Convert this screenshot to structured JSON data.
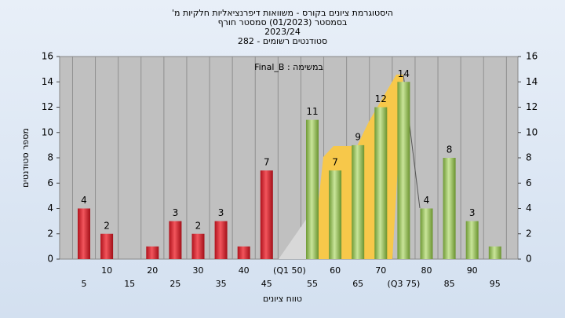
{
  "chart_data": {
    "type": "bar",
    "title": "היסטוגרמת ציונים בקורס - משוואות דיפרנציאליות חלקיות מ'",
    "subtitle": [
      "בסמסטר  (01/2023)  סמסטר חורף",
      "2023/24",
      "סטודנטים רשומים - 282"
    ],
    "annotation": "Final_B : במשימה",
    "x_label": "טווח ציונים",
    "y_label": "מספר סטודנטים",
    "categories": [
      "5",
      "10",
      "15",
      "20",
      "25",
      "30",
      "35",
      "40",
      "45",
      "(Q1 50)",
      "55",
      "60",
      "65",
      "70",
      "(Q3 75)",
      "80",
      "85",
      "90",
      "95"
    ],
    "values": [
      4,
      2,
      0,
      1,
      3,
      2,
      3,
      1,
      7,
      0,
      11,
      7,
      9,
      12,
      14,
      4,
      8,
      3,
      1
    ],
    "value_labels": [
      "4",
      "2",
      null,
      null,
      "3",
      "2",
      "3",
      null,
      "7",
      null,
      "11",
      "7",
      "9",
      "12",
      "14",
      "4",
      "8",
      "3",
      null
    ],
    "colors": [
      "red",
      "red",
      "red",
      "red",
      "red",
      "red",
      "red",
      "red",
      "red",
      "red",
      "green",
      "green",
      "green",
      "green",
      "green",
      "green",
      "green",
      "green",
      "green"
    ],
    "ylim": [
      0,
      16
    ],
    "yticks": [
      0,
      2,
      4,
      6,
      8,
      10,
      12,
      14,
      16
    ],
    "y2lim": [
      0,
      16
    ],
    "y2ticks": [
      0,
      2,
      4,
      6,
      8,
      10,
      12,
      14,
      16
    ],
    "grid": false
  }
}
